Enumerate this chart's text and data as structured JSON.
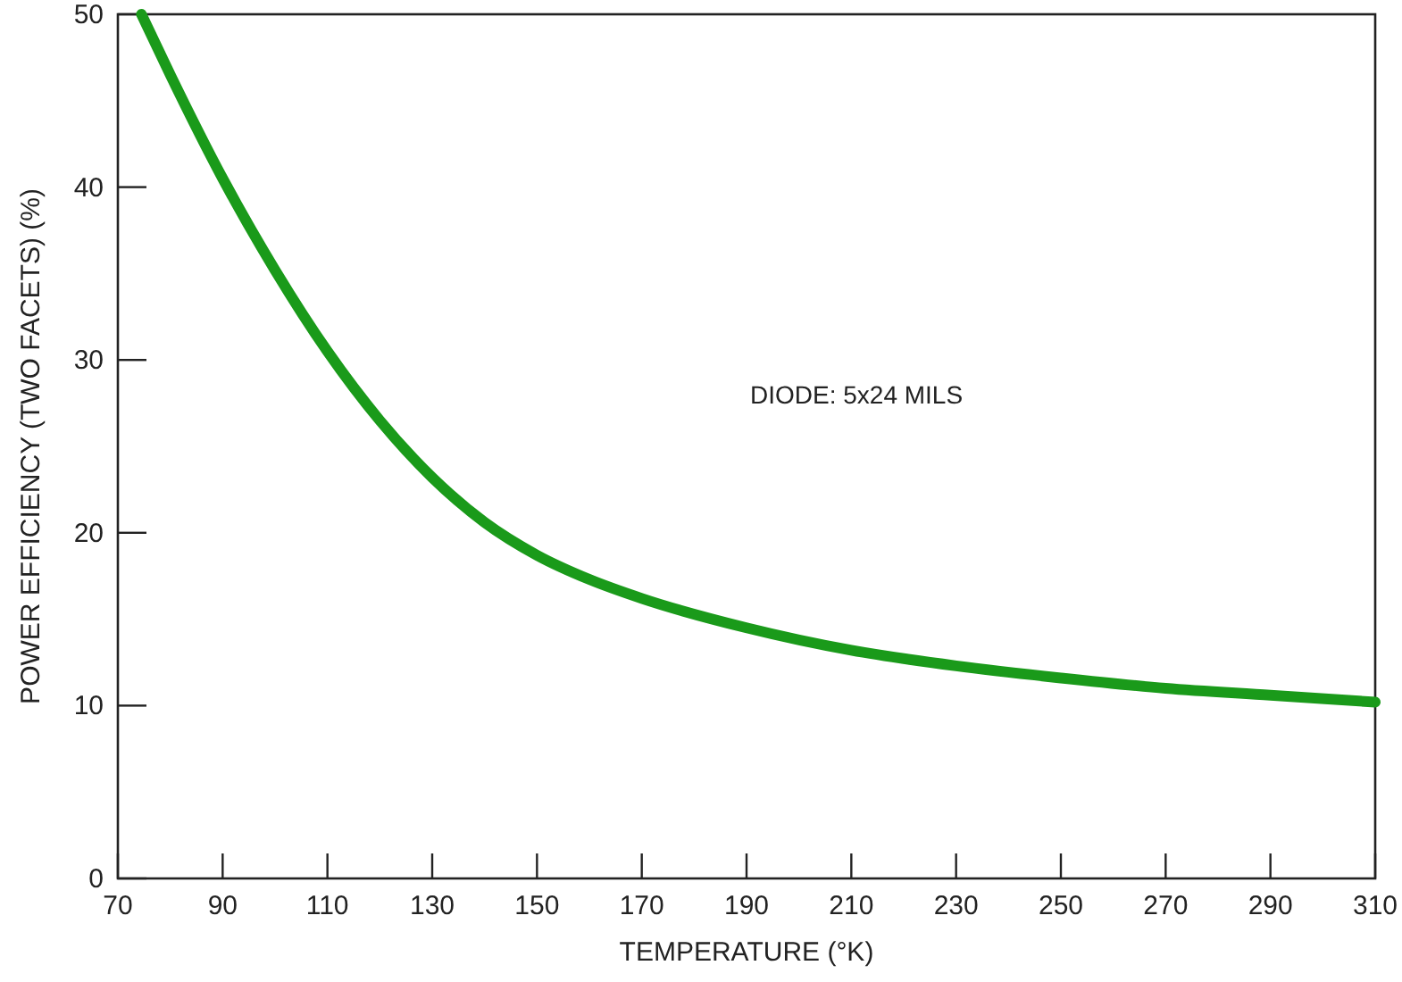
{
  "chart_data": {
    "type": "line",
    "xlabel": "TEMPERATURE (°K)",
    "ylabel": "POWER EFFICIENCY (TWO FACETS) (%)",
    "annotations": [
      "DIODE: 5x24 MILS"
    ],
    "x": [
      74.5,
      80,
      90,
      100,
      110,
      120,
      130,
      140,
      150,
      160,
      170,
      190,
      210,
      230,
      250,
      270,
      290,
      310
    ],
    "series": [
      {
        "color": "#1a9a1a",
        "values": [
          50,
          46.5,
          40.5,
          35.2,
          30.5,
          26.5,
          23.2,
          20.6,
          18.7,
          17.3,
          16.2,
          14.5,
          13.2,
          12.3,
          11.6,
          11,
          10.6,
          10.2
        ]
      }
    ],
    "xlim": [
      70,
      310
    ],
    "xticks": [
      70,
      90,
      110,
      130,
      150,
      170,
      190,
      210,
      230,
      250,
      270,
      290,
      310
    ],
    "ylim": [
      0,
      50
    ],
    "yticks": [
      0,
      10,
      20,
      30,
      40,
      50
    ],
    "marker": "none",
    "line_style": "solid"
  }
}
